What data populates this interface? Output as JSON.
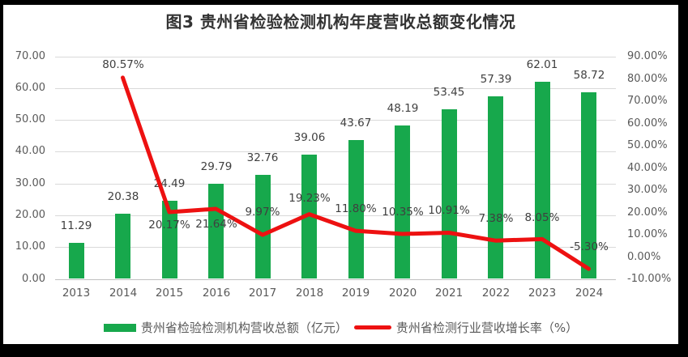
{
  "title": "图3 贵州省检验检测机构年度营收总额变化情况",
  "legend": [
    {
      "swatch": "bar-swatch",
      "label": "贵州省检验检测机构营收总额（亿元）"
    },
    {
      "swatch": "line-swatch",
      "label": "贵州省检测行业营收增长率（%）"
    }
  ],
  "colors": {
    "bar_green": "#17A84C",
    "line_red": "#ED1111",
    "gridline": "#D9D9D9",
    "axis_text": "#595959",
    "data_label": "#3F3F3F",
    "frame": "#000000",
    "background": "#FFFFFF"
  },
  "chart_data": {
    "type": "bar",
    "subtype": "bar+line combo",
    "title": "图3 贵州省检验检测机构年度营收总额变化情况",
    "categories": [
      "2013",
      "2014",
      "2015",
      "2016",
      "2017",
      "2018",
      "2019",
      "2020",
      "2021",
      "2022",
      "2023",
      "2024"
    ],
    "series": [
      {
        "name": "贵州省检验检测机构营收总额（亿元）",
        "type": "bar",
        "axis": "left",
        "color": "#17A84C",
        "values": [
          11.29,
          20.38,
          24.49,
          29.79,
          32.76,
          39.06,
          43.67,
          48.19,
          53.45,
          57.39,
          62.01,
          58.72
        ],
        "labels": [
          "11.29",
          "20.38",
          "24.49",
          "29.79",
          "32.76",
          "39.06",
          "43.67",
          "48.19",
          "53.45",
          "57.39",
          "62.01",
          "58.72"
        ]
      },
      {
        "name": "贵州省检测行业营收增长率（%）",
        "type": "line",
        "axis": "right",
        "color": "#ED1111",
        "values": [
          null,
          80.57,
          20.17,
          21.64,
          9.97,
          19.23,
          11.8,
          10.35,
          10.91,
          7.38,
          8.05,
          -5.3
        ],
        "labels": [
          null,
          "80.57%",
          "20.17%",
          "21.64%",
          "9.97%",
          "19.23%",
          "11.80%",
          "10.35%",
          "10.91%",
          "7.38%",
          "8.05%",
          "-5.30%"
        ]
      }
    ],
    "left_axis": {
      "min": 0,
      "max": 70,
      "step": 10,
      "ticks": [
        "70.00",
        "60.00",
        "50.00",
        "40.00",
        "30.00",
        "20.00",
        "10.00",
        "0.00"
      ]
    },
    "right_axis": {
      "min": -10,
      "max": 90,
      "step": 10,
      "ticks": [
        "90.00%",
        "80.00%",
        "70.00%",
        "60.00%",
        "50.00%",
        "40.00%",
        "30.00%",
        "20.00%",
        "10.00%",
        "0.00%",
        "-10.00%"
      ]
    },
    "grid": true,
    "legend_position": "bottom"
  }
}
